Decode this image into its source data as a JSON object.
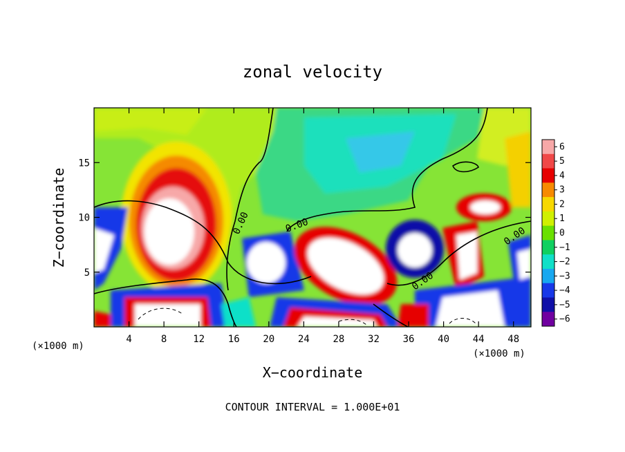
{
  "chart_data": {
    "type": "heatmap",
    "title": "zonal velocity",
    "xlabel": "X−coordinate",
    "ylabel": "Z−coordinate",
    "x_unit_label": "(×1000 m)",
    "x_unit_label_right": "(×1000 m)",
    "xlim": [
      0,
      50
    ],
    "ylim": [
      0,
      20
    ],
    "x_ticks": [
      4,
      8,
      12,
      16,
      20,
      24,
      28,
      32,
      36,
      40,
      44,
      48
    ],
    "y_ticks": [
      5,
      10,
      15
    ],
    "colorbar": {
      "levels": [
        6,
        5,
        4,
        3,
        2,
        1,
        0,
        -1,
        -2,
        -3,
        -4,
        -5,
        -6
      ],
      "labels": [
        "6",
        "5",
        "4",
        "3",
        "2",
        "1",
        "0",
        "−1",
        "−2",
        "−3",
        "−4",
        "−5",
        "−6"
      ],
      "colors": [
        "#f7a8a8",
        "#f04848",
        "#e60000",
        "#f78a00",
        "#f7d800",
        "#d0f000",
        "#6ae000",
        "#10d060",
        "#10e0c8",
        "#18a8f0",
        "#1838e8",
        "#1010a8",
        "#7000a0"
      ]
    },
    "contour_labels": [
      "0.00",
      "0.00",
      "0.00",
      "0.00"
    ],
    "footer": "CONTOUR INTERVAL = 1.000E+01"
  }
}
